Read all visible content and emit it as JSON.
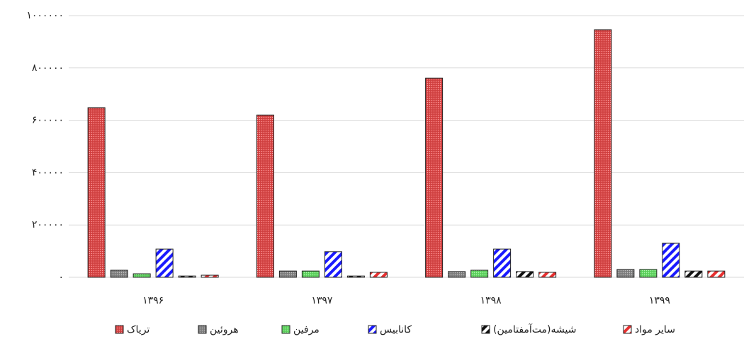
{
  "chart_data": {
    "type": "bar",
    "categories": [
      "۱۳۹۶",
      "۱۳۹۷",
      "۱۳۹۸",
      "۱۳۹۹"
    ],
    "series": [
      {
        "name": "تریاک",
        "color": "#e04848",
        "hatch": "crosshatch",
        "values": [
          648000,
          620000,
          761000,
          946000
        ]
      },
      {
        "name": "هروئین",
        "color": "#888888",
        "hatch": "crosshatch",
        "values": [
          27000,
          24000,
          22000,
          30000
        ]
      },
      {
        "name": "مرفین",
        "color": "#66dd66",
        "hatch": "crosshatch",
        "values": [
          13500,
          24000,
          27000,
          30000
        ]
      },
      {
        "name": "کانابیس",
        "color": "#1a1aff",
        "hatch": "stripes",
        "values": [
          108000,
          98000,
          108000,
          130000
        ]
      },
      {
        "name": "شیشه(مت‌آمفتامین)",
        "color": "#111111",
        "hatch": "stripes",
        "values": [
          5000,
          5000,
          22000,
          24000
        ]
      },
      {
        "name": "سایر مواد",
        "color": "#e83030",
        "hatch": "stripes",
        "values": [
          8000,
          19000,
          19000,
          24000
        ]
      }
    ],
    "ylim": [
      0,
      1000000
    ],
    "yticks": [
      {
        "value": 0,
        "label": "۰"
      },
      {
        "value": 200000,
        "label": "۲۰۰۰۰۰"
      },
      {
        "value": 400000,
        "label": "۴۰۰۰۰۰"
      },
      {
        "value": 600000,
        "label": "۶۰۰۰۰۰"
      },
      {
        "value": 800000,
        "label": "۸۰۰۰۰۰"
      },
      {
        "value": 1000000,
        "label": "۱۰۰۰۰۰۰"
      }
    ],
    "grid": true,
    "legend": "bottom"
  }
}
